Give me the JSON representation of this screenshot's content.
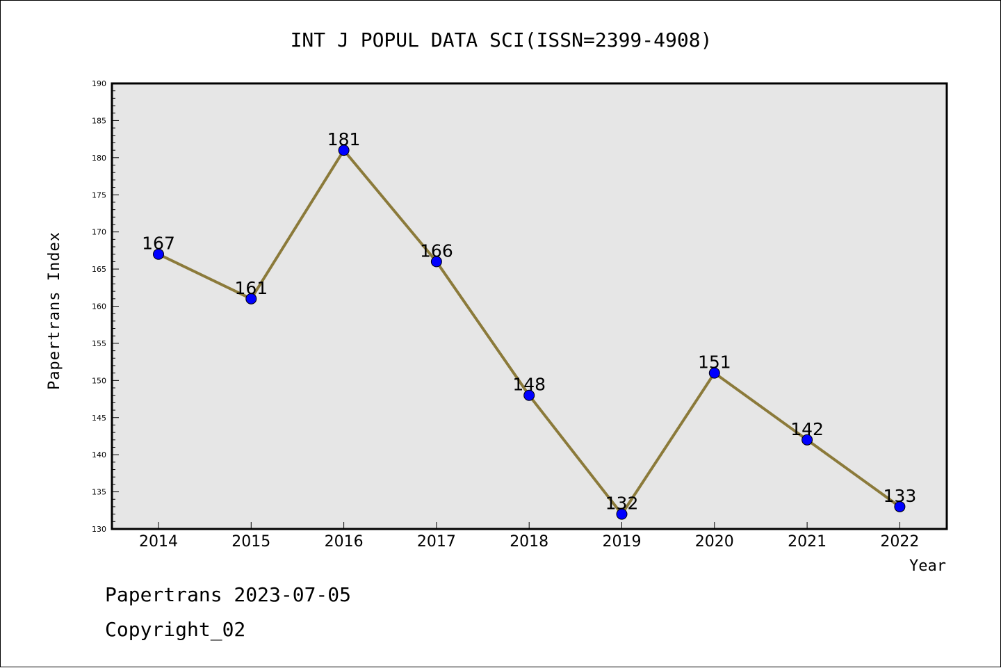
{
  "chart_data": {
    "type": "line",
    "title": "INT J POPUL DATA SCI(ISSN=2399-4908)",
    "xlabel": "Year",
    "ylabel": "Papertrans Index",
    "categories": [
      "2014",
      "2015",
      "2016",
      "2017",
      "2018",
      "2019",
      "2020",
      "2021",
      "2022"
    ],
    "values": [
      167,
      161,
      181,
      166,
      148,
      132,
      151,
      142,
      133
    ],
    "ylim": [
      130,
      190
    ],
    "yticks": [
      130,
      135,
      140,
      145,
      150,
      155,
      160,
      165,
      170,
      175,
      180,
      185,
      190
    ],
    "grid": false,
    "line_color": "#8b7a3a",
    "marker_color": "#0000ff",
    "plot_background": "#e6e6e6"
  },
  "footer": {
    "line1": "Papertrans 2023-07-05",
    "line2": "Copyright_02"
  }
}
